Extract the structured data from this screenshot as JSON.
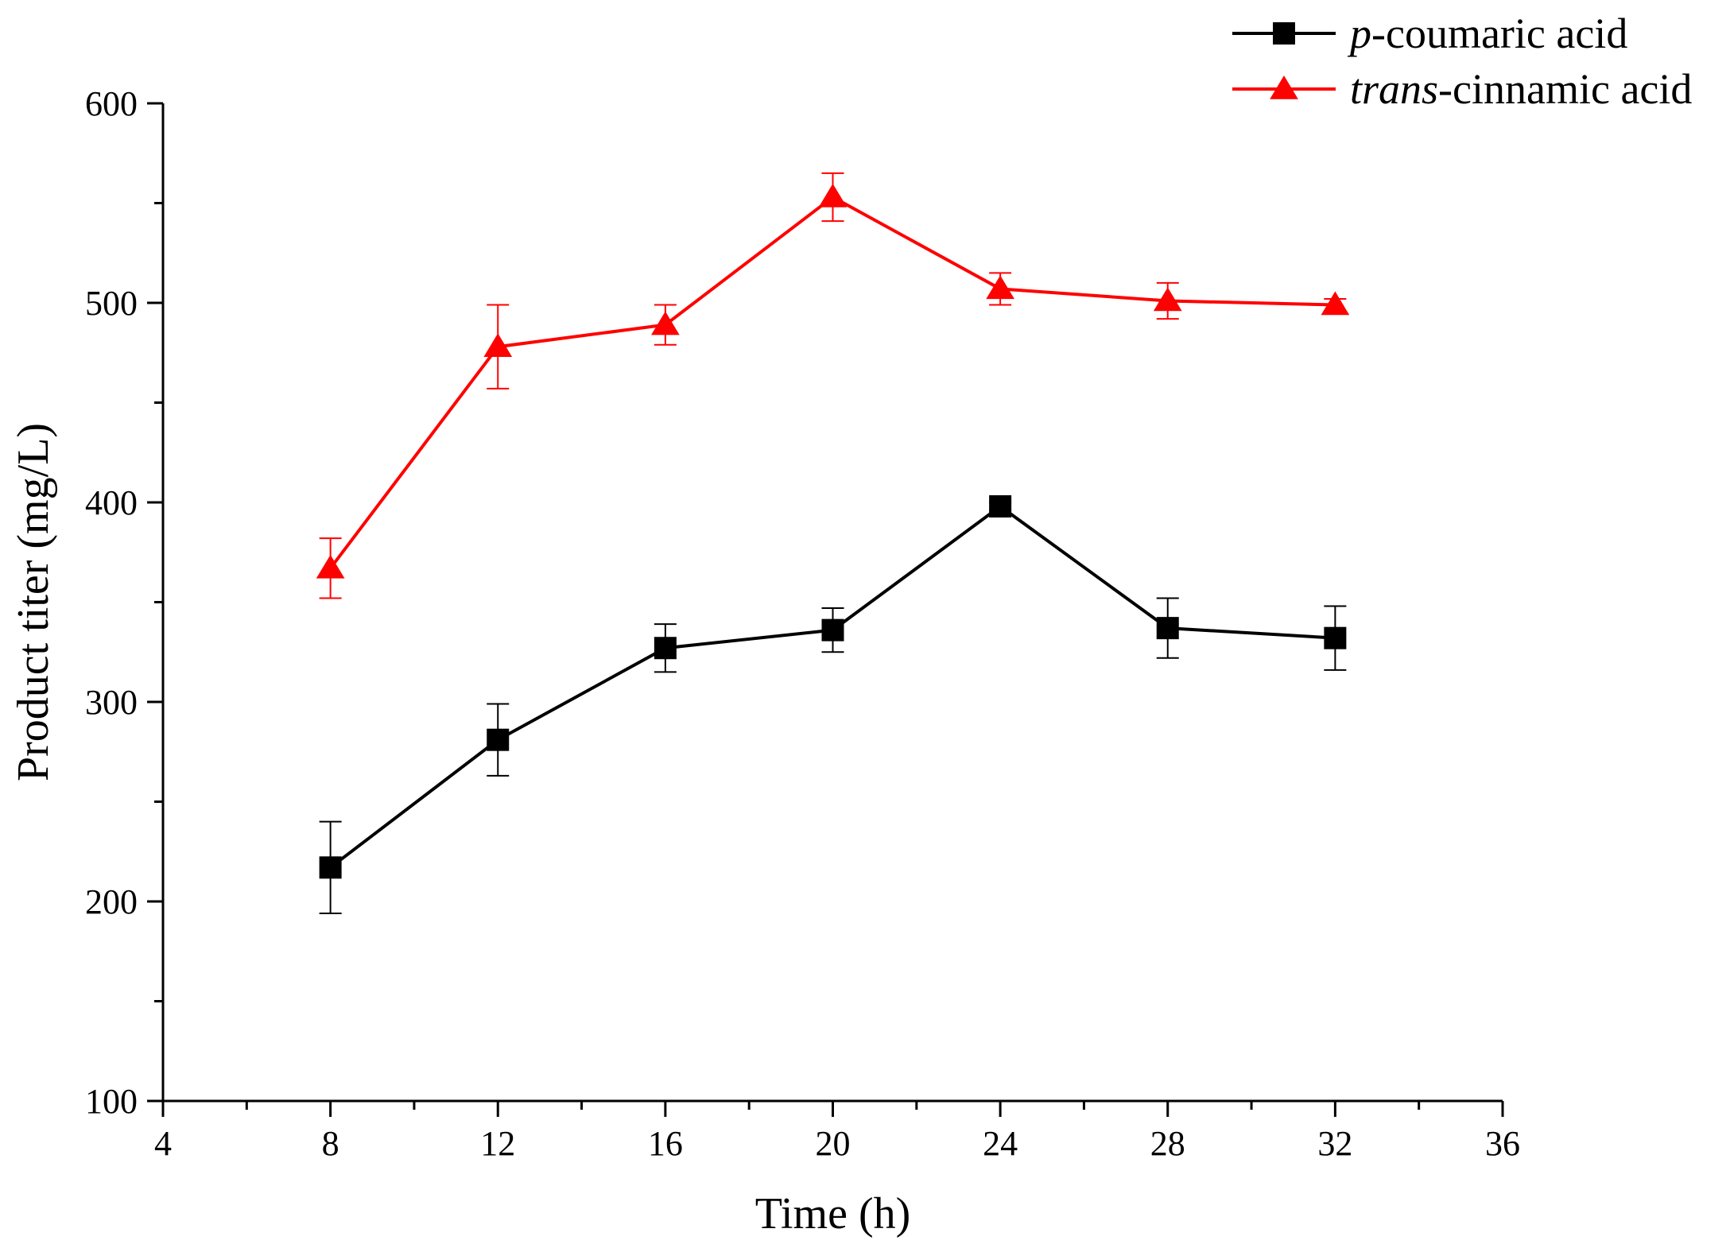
{
  "chart_data": {
    "type": "line",
    "xlabel": "Time (h)",
    "ylabel": "Product titer (mg/L)",
    "xlim": [
      4,
      36
    ],
    "ylim": [
      100,
      600
    ],
    "x_major_ticks": [
      4,
      8,
      12,
      16,
      20,
      24,
      28,
      32,
      36
    ],
    "x_minor_step": 2,
    "y_major_ticks": [
      100,
      200,
      300,
      400,
      500,
      600
    ],
    "y_minor_step": 50,
    "grid": false,
    "legend_position": "top-right",
    "x": [
      8,
      12,
      16,
      20,
      24,
      28,
      32
    ],
    "series": [
      {
        "name_italic": "p",
        "name_rest": "-coumaric acid",
        "color": "#000000",
        "marker": "square",
        "values": [
          217,
          281,
          327,
          336,
          398,
          337,
          332
        ],
        "error": [
          23,
          18,
          12,
          11,
          2,
          15,
          16
        ]
      },
      {
        "name_italic": "trans",
        "name_rest": "-cinnamic acid",
        "color": "#ff0000",
        "marker": "triangle",
        "values": [
          367,
          478,
          489,
          553,
          507,
          501,
          499
        ],
        "error": [
          15,
          21,
          10,
          12,
          8,
          9,
          3
        ]
      }
    ]
  }
}
